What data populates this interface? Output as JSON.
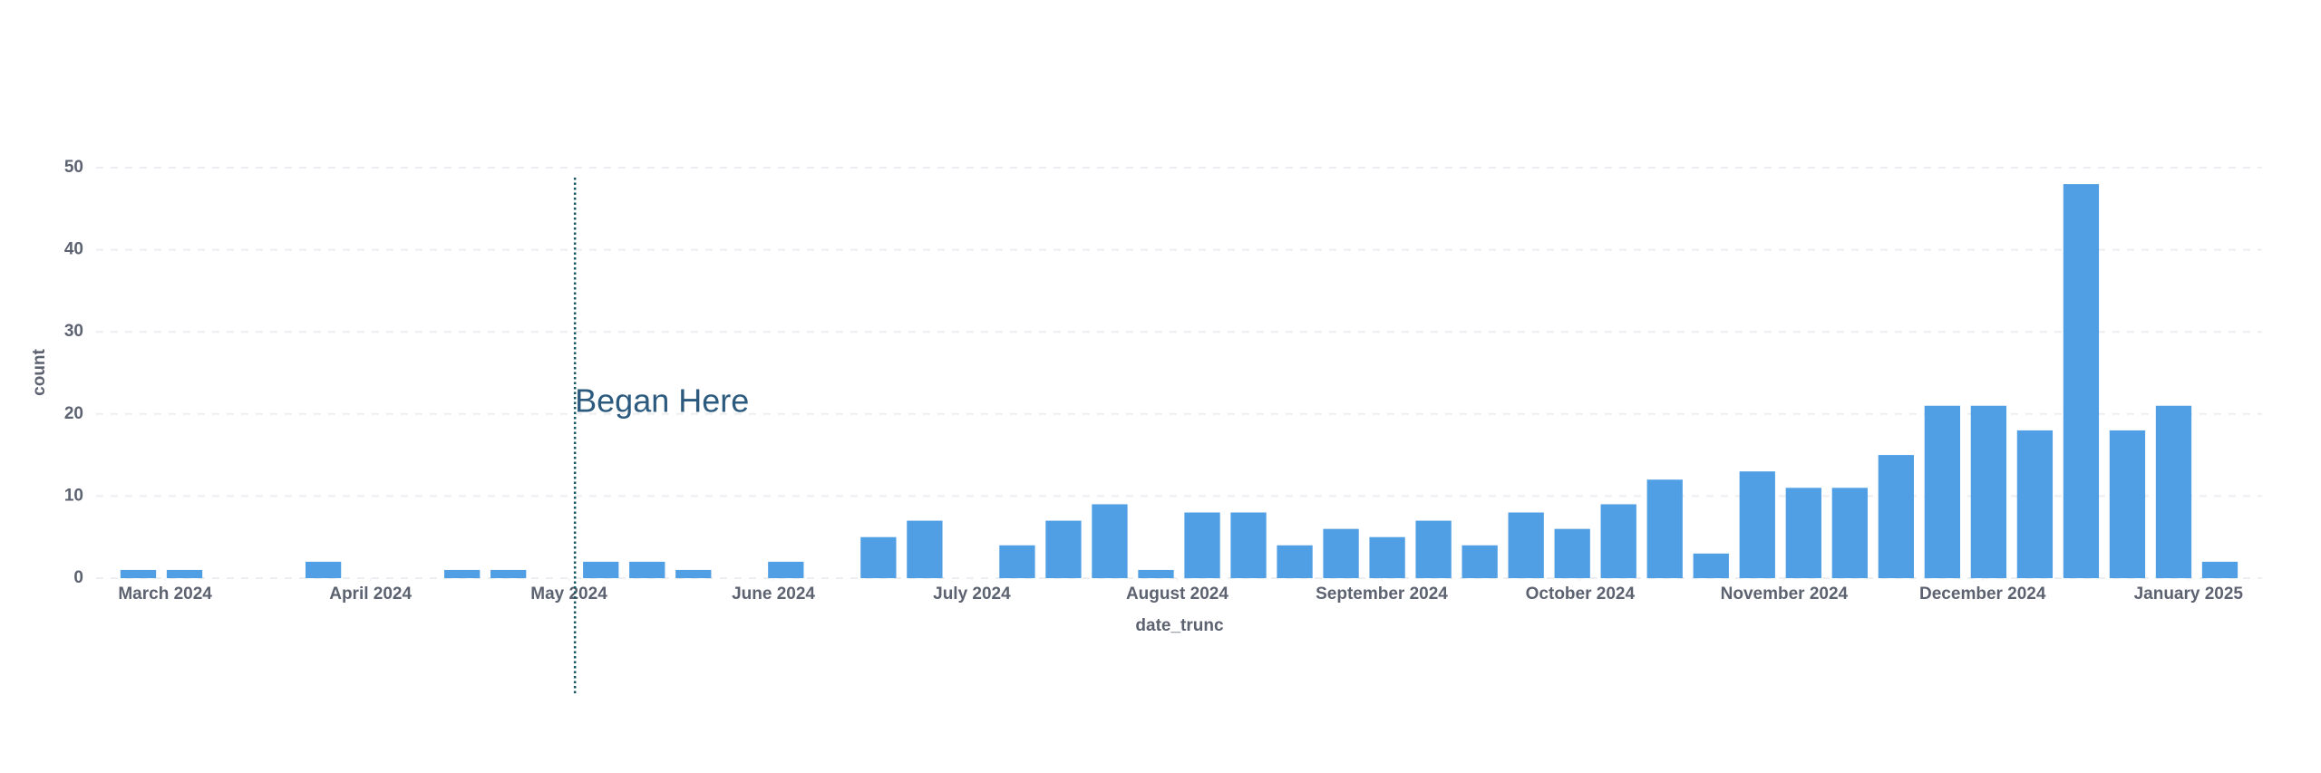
{
  "chart_data": {
    "type": "bar",
    "color": "#509ee3",
    "x_label": "date_trunc",
    "y_label": "count",
    "x": [
      0,
      1,
      2,
      3,
      4,
      5,
      6,
      7,
      8,
      9,
      10,
      11,
      12,
      13,
      14,
      15,
      16,
      17,
      18,
      19,
      20,
      21,
      22,
      23,
      24,
      25,
      26,
      27,
      28,
      29,
      30,
      31,
      32,
      33,
      34,
      35,
      36,
      37,
      38,
      39,
      40,
      41,
      42,
      43,
      44,
      45
    ],
    "values": [
      1,
      1,
      0,
      0,
      2,
      0,
      0,
      1,
      1,
      0,
      2,
      2,
      1,
      0,
      2,
      0,
      5,
      7,
      0,
      4,
      7,
      9,
      1,
      8,
      8,
      4,
      6,
      5,
      7,
      4,
      8,
      6,
      9,
      12,
      3,
      13,
      11,
      11,
      15,
      21,
      21,
      18,
      48,
      18,
      21,
      2
    ],
    "xlim": [
      -0.5,
      45.5
    ],
    "xticks": [
      {
        "value": 0.58,
        "label": "March 2024"
      },
      {
        "value": 5.02,
        "label": "April 2024"
      },
      {
        "value": 9.31,
        "label": "May 2024"
      },
      {
        "value": 13.73,
        "label": "June 2024"
      },
      {
        "value": 18.02,
        "label": "July 2024"
      },
      {
        "value": 22.46,
        "label": "August 2024"
      },
      {
        "value": 26.88,
        "label": "September 2024"
      },
      {
        "value": 31.17,
        "label": "October 2024"
      },
      {
        "value": 35.58,
        "label": "November 2024"
      },
      {
        "value": 39.87,
        "label": "December 2024"
      },
      {
        "value": 44.32,
        "label": "January 2025"
      }
    ],
    "ylim": [
      0,
      50
    ],
    "yticks": [
      0,
      10,
      20,
      30,
      40,
      50
    ],
    "grid": true,
    "annotation": {
      "x": 9.44,
      "text": "Began Here"
    }
  }
}
